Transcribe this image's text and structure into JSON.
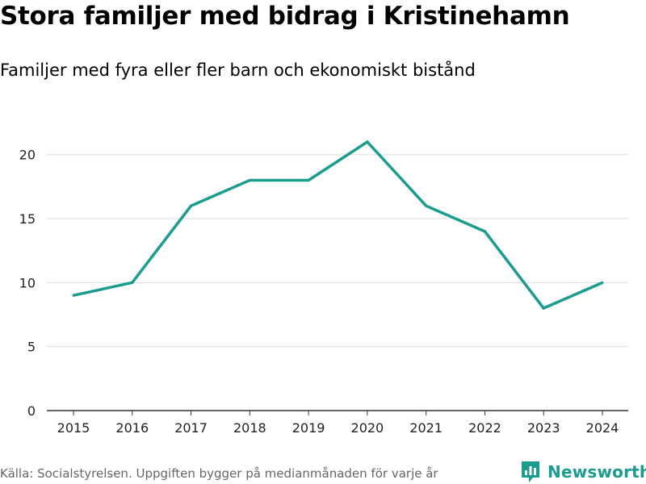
{
  "header": {
    "title": "Stora familjer med bidrag i Kristinehamn",
    "subtitle": "Familjer med fyra eller fler barn och ekonomiskt bistånd"
  },
  "footer": {
    "source": "Källa: Socialstyrelsen. Uppgiften bygger på medianmånaden för varje år",
    "brand_name": "Newsworthy"
  },
  "colors": {
    "line": "#1a9c8f",
    "grid": "#dddddd",
    "axis": "#333333"
  },
  "chart_data": {
    "type": "line",
    "title": "Stora familjer med bidrag i Kristinehamn",
    "subtitle": "Familjer med fyra eller fler barn och ekonomiskt bistånd",
    "xlabel": "",
    "ylabel": "",
    "x": [
      "2015",
      "2016",
      "2017",
      "2018",
      "2019",
      "2020",
      "2021",
      "2022",
      "2023",
      "2024"
    ],
    "series": [
      {
        "name": "Familjer",
        "values": [
          9,
          10,
          16,
          18,
          18,
          21,
          16,
          14,
          8,
          10
        ]
      }
    ],
    "ylim": [
      0,
      22
    ],
    "yticks": [
      0,
      5,
      10,
      15,
      20
    ],
    "grid": true,
    "legend": "none"
  }
}
